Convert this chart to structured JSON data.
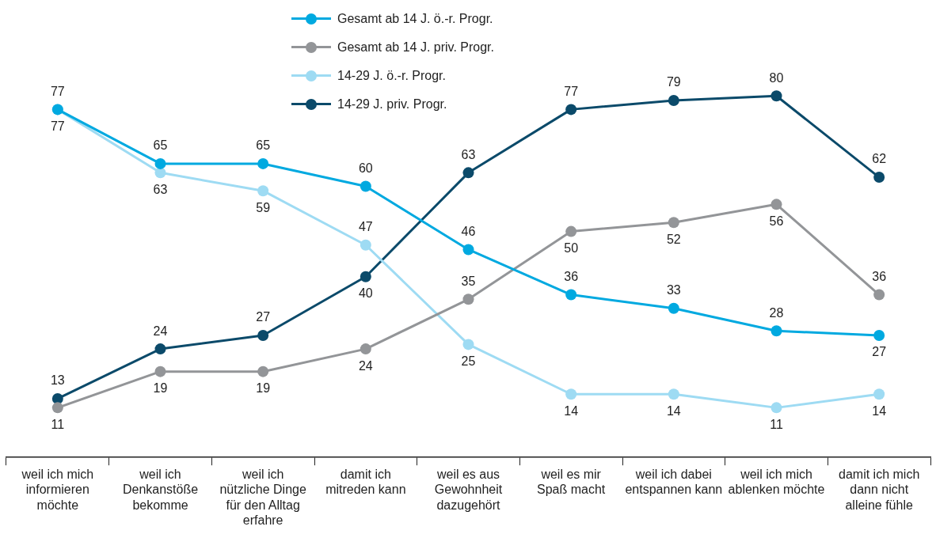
{
  "chart_data": {
    "type": "line",
    "categories": [
      "weil ich mich informieren möchte",
      "weil ich Denkanstöße bekomme",
      "weil ich nützliche Dinge für den Alltag erfahre",
      "damit ich mitreden kann",
      "weil es aus Gewohnheit dazugehört",
      "weil es mir Spaß macht",
      "weil ich dabei entspannen kann",
      "weil ich mich ablenken möchte",
      "damit ich mich dann nicht alleine fühle"
    ],
    "series": [
      {
        "name": "Gesamt ab 14 J. ö.-r. Progr.",
        "color": "#00a9e0",
        "values": [
          77,
          65,
          65,
          60,
          46,
          36,
          33,
          28,
          27
        ]
      },
      {
        "name": "Gesamt ab 14 J. priv. Progr.",
        "color": "#939598",
        "values": [
          11,
          19,
          19,
          24,
          35,
          50,
          52,
          56,
          36
        ]
      },
      {
        "name": "14-29 J. ö.-r. Progr.",
        "color": "#9edbf3",
        "values": [
          77,
          63,
          59,
          47,
          25,
          14,
          14,
          11,
          14
        ]
      },
      {
        "name": "14-29 J. priv. Progr.",
        "color": "#0b4a6a",
        "values": [
          13,
          24,
          27,
          40,
          63,
          77,
          79,
          80,
          62
        ]
      }
    ],
    "data_labels": true,
    "marker": "circle",
    "line_style": "solid",
    "legend": "top",
    "grid": false
  }
}
